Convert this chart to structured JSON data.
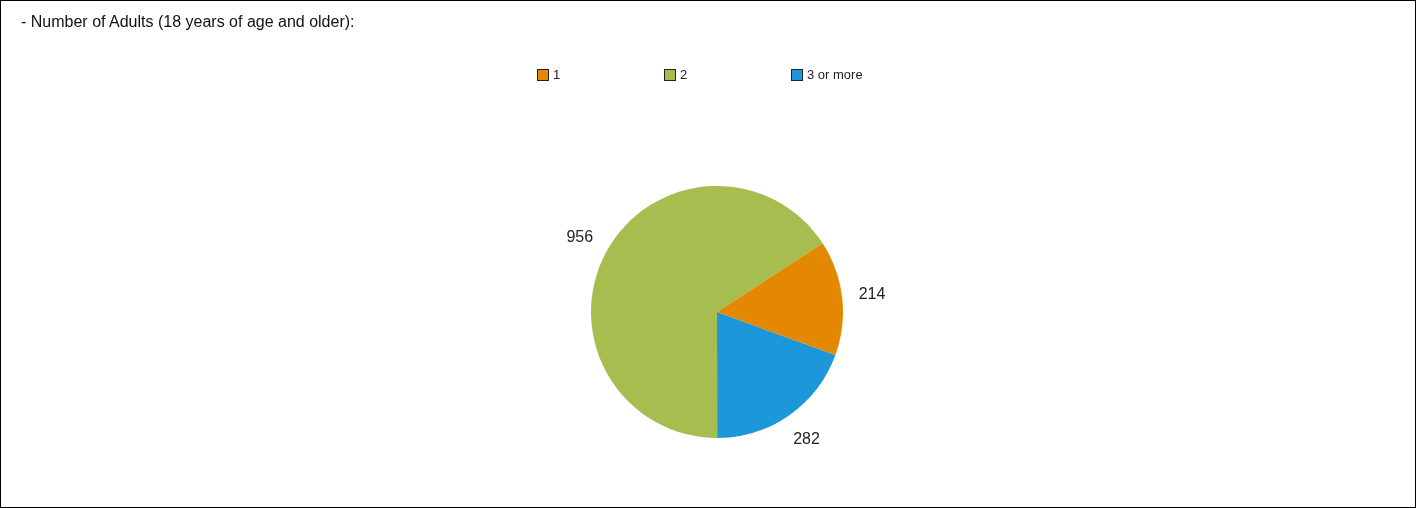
{
  "chart_data": {
    "type": "pie",
    "title": "- Number of Adults (18 years of age and older):",
    "categories": [
      "1",
      "2",
      "3 or more"
    ],
    "values": [
      214,
      956,
      282
    ],
    "colors": [
      "#e38800",
      "#a6bd50",
      "#1c97da"
    ],
    "data_labels": true,
    "legend": "top"
  }
}
